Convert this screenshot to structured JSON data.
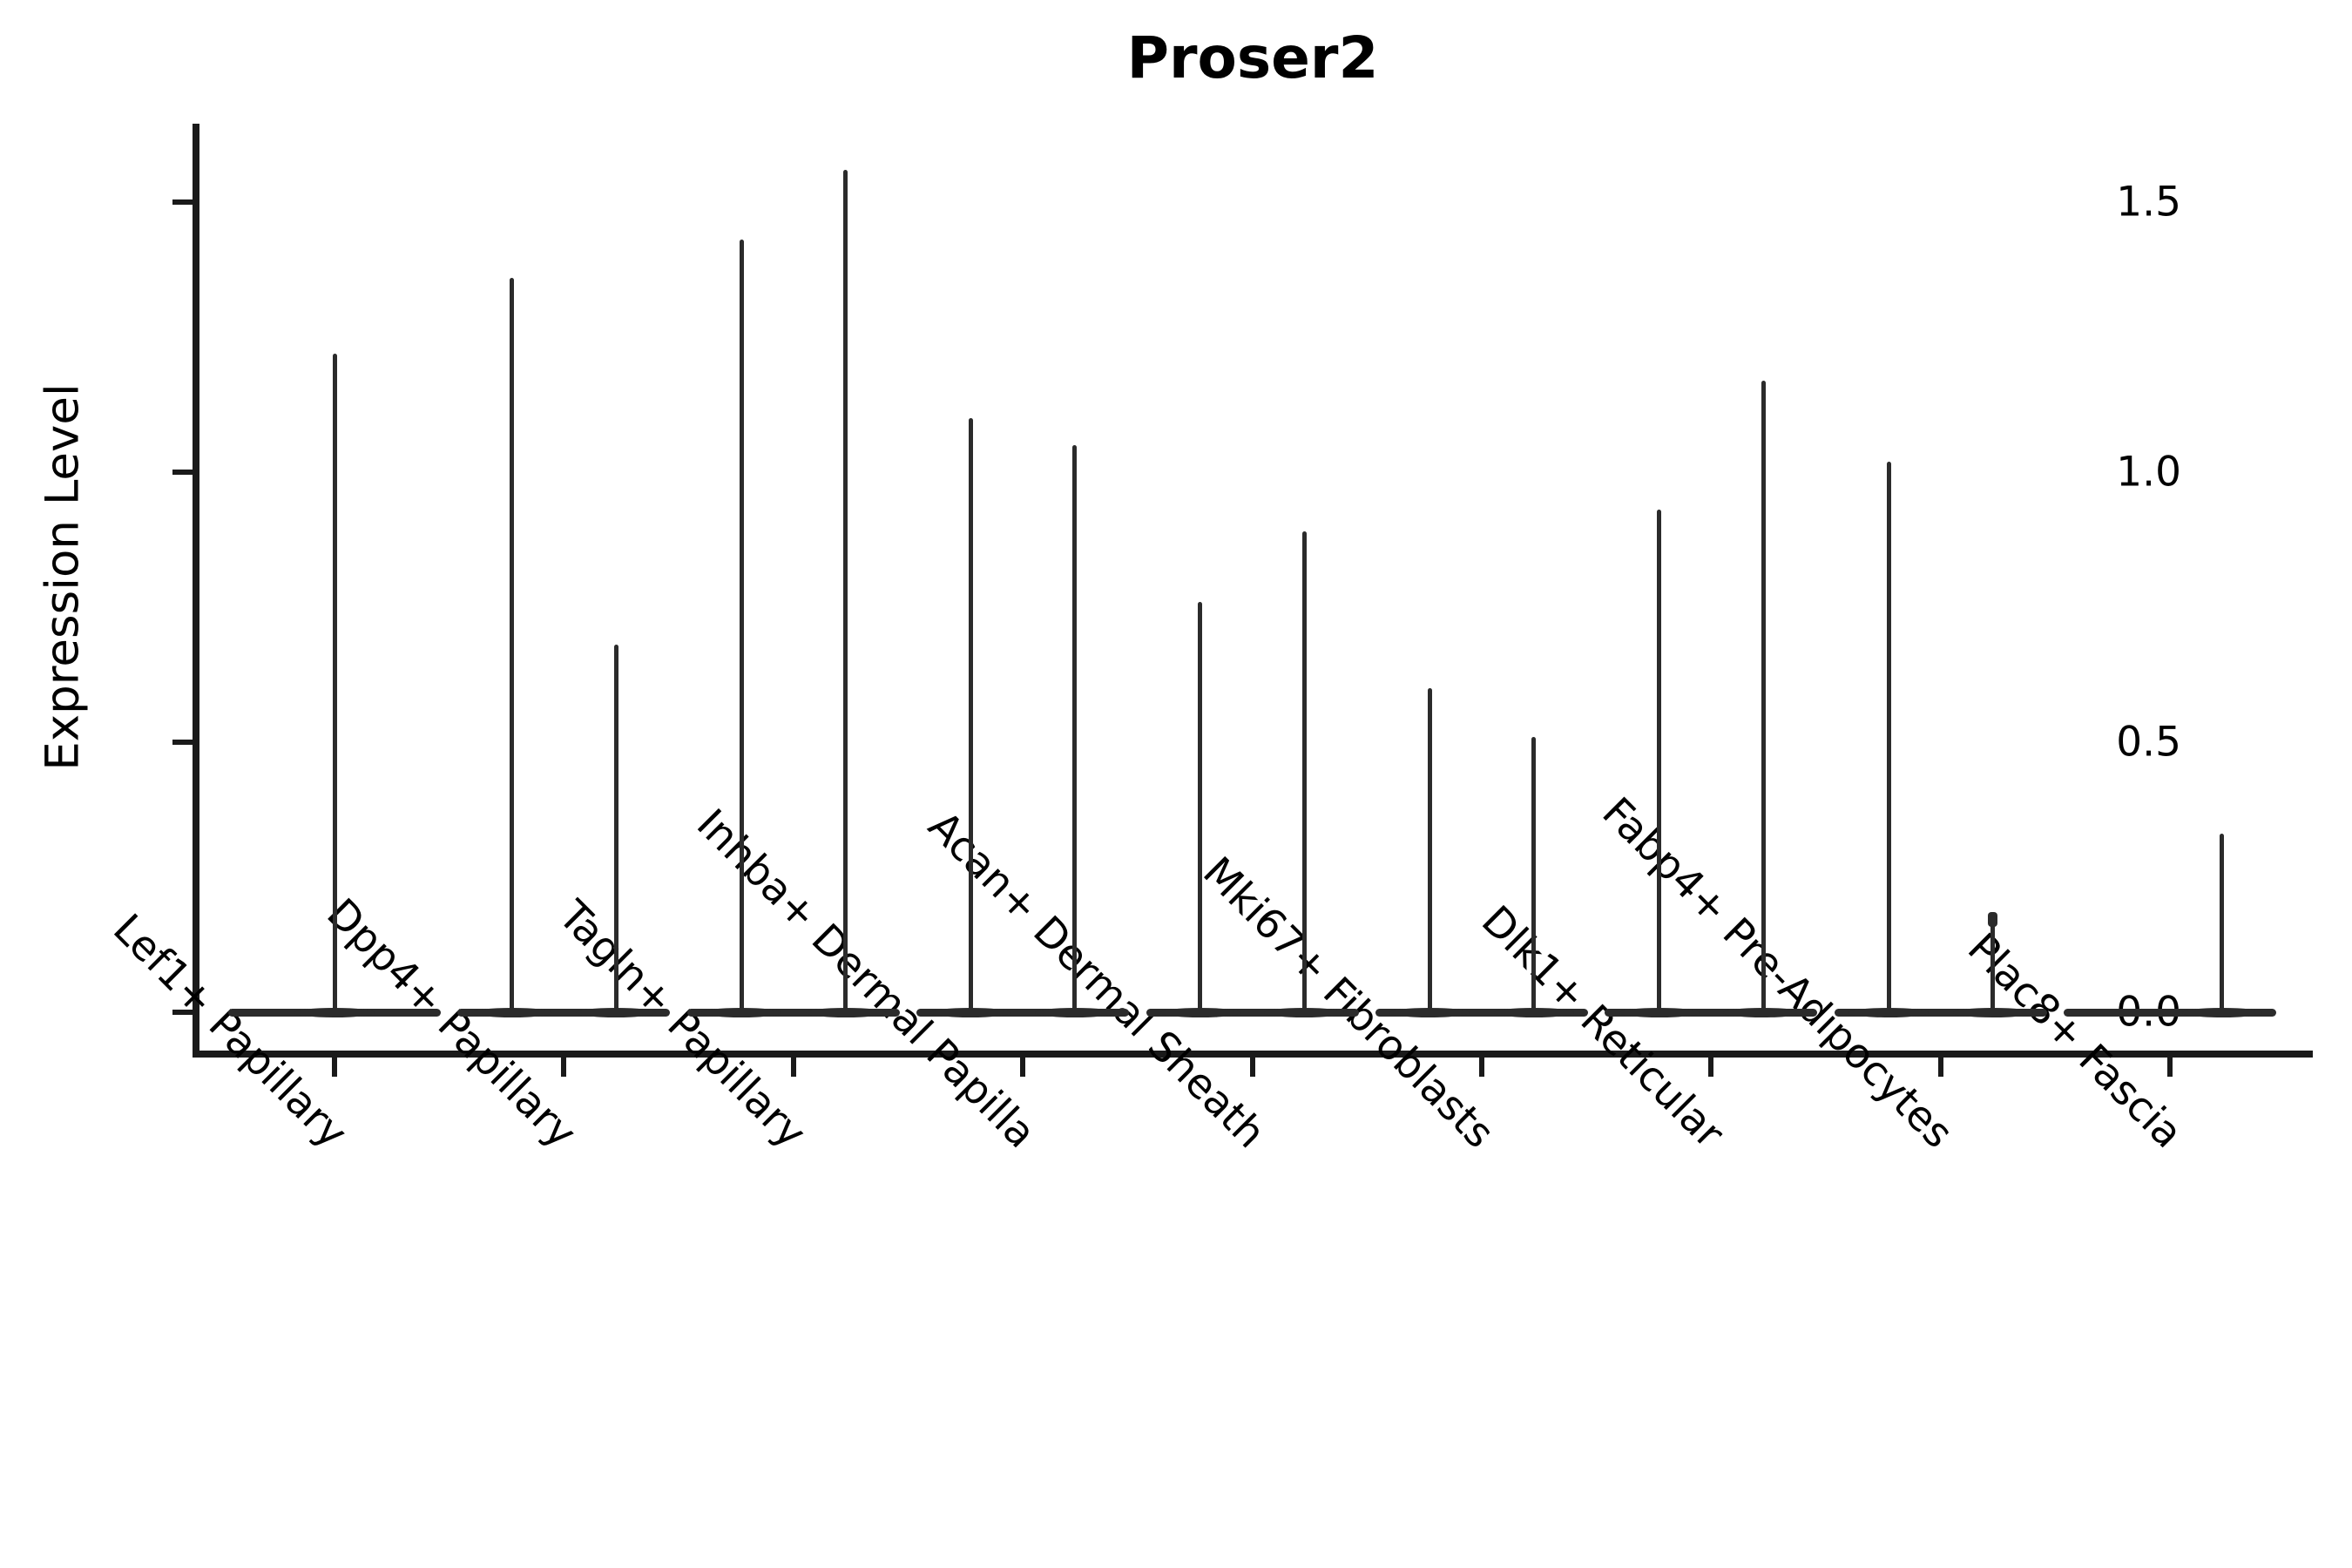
{
  "title": "Proser2",
  "axes": {
    "ylabel": "Expression Level",
    "yticks": [
      "0.0",
      "0.5",
      "1.0",
      "1.5"
    ],
    "ytick_values": [
      0.0,
      0.5,
      1.0,
      1.5
    ]
  },
  "colors": {
    "violin": "#2b2b2b",
    "spine": "#1a1a1a",
    "text": "#000000",
    "background": "#ffffff"
  },
  "chart_data": {
    "type": "violin",
    "title": "Proser2",
    "xlabel": "",
    "ylabel": "Expression Level",
    "ylim": [
      0,
      1.65
    ],
    "yticks": [
      0.0,
      0.5,
      1.0,
      1.5
    ],
    "grid": false,
    "legend": "none",
    "categories": [
      "Lef1+ Papillary",
      "Dpp4+ Papillary",
      "Tagln+ Papillary",
      "Inhba+ Dermal Papilla",
      "Acan+ Dermal Sheath",
      "Mki67+ Fibroblasts",
      "Dlk1+ Reticular",
      "Fabp4+ Pre-Adipocytes",
      "Plac8+ Fascia"
    ],
    "distribution_note": "Each violin is collapsed into a wide flat bar at expression 0 (most cells express nothing) with a thin vertical spike reaching the maximum expression value of that group; most categories show two side-by-side sub-violins.",
    "series": [
      {
        "category": "Lef1+ Papillary",
        "violins": [
          {
            "slot": "center",
            "max": 1.22
          }
        ]
      },
      {
        "category": "Dpp4+ Papillary",
        "violins": [
          {
            "slot": "left",
            "max": 1.36
          },
          {
            "slot": "right",
            "max": 0.68
          }
        ]
      },
      {
        "category": "Tagln+ Papillary",
        "violins": [
          {
            "slot": "left",
            "max": 1.43
          },
          {
            "slot": "right",
            "max": 1.56
          }
        ]
      },
      {
        "category": "Inhba+ Dermal Papilla",
        "violins": [
          {
            "slot": "left",
            "max": 1.1
          },
          {
            "slot": "right",
            "max": 1.05
          }
        ]
      },
      {
        "category": "Acan+ Dermal Sheath",
        "violins": [
          {
            "slot": "left",
            "max": 0.76
          },
          {
            "slot": "right",
            "max": 0.89
          }
        ]
      },
      {
        "category": "Mki67+ Fibroblasts",
        "violins": [
          {
            "slot": "left",
            "max": 0.6
          },
          {
            "slot": "right",
            "max": 0.51
          }
        ]
      },
      {
        "category": "Dlk1+ Reticular",
        "violins": [
          {
            "slot": "left",
            "max": 0.93
          },
          {
            "slot": "right",
            "max": 1.17
          }
        ]
      },
      {
        "category": "Fabp4+ Pre-Adipocytes",
        "violins": [
          {
            "slot": "left",
            "max": 1.02
          },
          {
            "slot": "right",
            "max": 0.18,
            "tip_knob": true
          }
        ]
      },
      {
        "category": "Plac8+ Fascia",
        "violins": [
          {
            "slot": "right",
            "max": 0.33
          }
        ]
      }
    ]
  }
}
